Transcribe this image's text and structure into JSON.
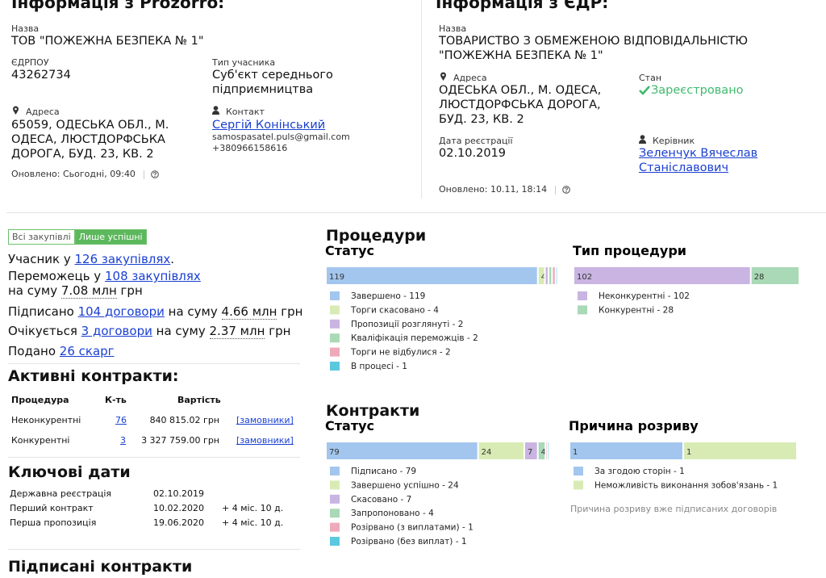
{
  "prozorro": {
    "title": "Інформація з Prozorro:",
    "name_label": "Назва",
    "name": "ТОВ \"ПОЖЕЖНА БЕЗПЕКА № 1\"",
    "edrpou_label": "ЄДРПОУ",
    "edrpou": "43262734",
    "type_label": "Тип учасника",
    "type": "Суб'єкт середнього підприємництва",
    "address_label": "Адреса",
    "address": "65059, ОДЕСЬКА ОБЛ., М. ОДЕСА, ЛЮСТДОРФСЬКА ДОРОГА, БУД. 23, КВ. 2",
    "contact_label": "Контакт",
    "contact_name": "Сергій Конінський",
    "contact_email": "samospasatel.puls@gmail.com",
    "contact_phone": "+380966158616",
    "updated": "Оновлено: Сьогодні, 09:40"
  },
  "edr": {
    "title": "Інформація з ЄДР:",
    "name_label": "Назва",
    "name": "ТОВАРИСТВО З ОБМЕЖЕНОЮ ВІДПОВІДАЛЬНІСТЮ \"ПОЖЕЖНА БЕЗПЕКА № 1\"",
    "address_label": "Адреса",
    "address": "ОДЕСЬКА ОБЛ., М. ОДЕСА, ЛЮСТДОРФСЬКА ДОРОГА, БУД. 23, КВ. 2",
    "state_label": "Стан",
    "state": "Зареєстровано",
    "reg_date_label": "Дата реєстрації",
    "reg_date": "02.10.2019",
    "head_label": "Керівник",
    "head": "Зеленчук Вячеслав Станіславович",
    "updated": "Оновлено: 10.11, 18:14"
  },
  "filters": [
    "Всі закупівлі",
    "Лише успішні"
  ],
  "summary": [
    [
      "Учасник у",
      "126 закупівлях",
      "."
    ],
    [
      "Переможець у",
      "108 закупівлях",
      "на суму",
      "7.08 млн",
      "грн"
    ],
    [
      "Підписано",
      "104 договори",
      "на суму",
      "4.66 млн",
      "грн"
    ],
    [
      "Очікується",
      "3 договори",
      "на суму",
      "2.37 млн",
      "грн"
    ],
    [
      "Подано",
      "26 скарг"
    ]
  ],
  "active_contracts": {
    "title": "Активні контракти:",
    "headers": [
      "Процедура",
      "К-ть",
      "Вартість"
    ],
    "rows": [
      [
        "Неконкурентні",
        "76",
        "840 815.02 грн",
        "[замовники]"
      ],
      [
        "Конкурентні",
        "3",
        "3 327 759.00 грн",
        "[замовники]"
      ]
    ]
  },
  "key_dates": {
    "title": "Ключові дати",
    "rows": [
      [
        "Державна реєстрація",
        "02.10.2019"
      ],
      [
        "Перший контракт",
        "10.02.2020",
        "+ 4 міс. 10 д."
      ],
      [
        "Перша пропозиція",
        "19.06.2020",
        "+ 4 міс. 10 д."
      ]
    ]
  },
  "signed_contracts": {
    "title": "Підписані контракти"
  },
  "procedures": {
    "title": "Процедури",
    "status": {
      "type": "bar",
      "title": "Статус",
      "categories": [
        "Завершено - 119",
        "Торги скасовано - 4",
        "Пропозиції розглянуті - 2",
        "Кваліфікація переможців - 2",
        "Торги не відбулися - 2",
        "В процесі - 1"
      ],
      "values": [
        119,
        4,
        2,
        2,
        2,
        1
      ],
      "colors": [
        "#a3c6ee",
        "#d9ebb5",
        "#c9b4e2",
        "#a9d9b6",
        "#eeaabb",
        "#5ac8de"
      ]
    },
    "kind": {
      "type": "bar",
      "title": "Тип процедури",
      "categories": [
        "Неконкурентні - 102",
        "Конкурентні - 28"
      ],
      "values": [
        102,
        28
      ],
      "colors": [
        "#c9b4e2",
        "#a9d9b6"
      ]
    }
  },
  "contracts": {
    "title": "Контракти",
    "status": {
      "type": "bar",
      "title": "Статус",
      "categories": [
        "Підписано - 79",
        "Завершено успішно - 24",
        "Скасовано - 7",
        "Запропоновано - 4",
        "Розірвано (з виплатами) - 1",
        "Розірвано (без виплат) - 1"
      ],
      "values": [
        79,
        24,
        7,
        4,
        1,
        1
      ],
      "colors": [
        "#a3c6ee",
        "#d9ebb5",
        "#c9b4e2",
        "#a9d9b6",
        "#eeaabb",
        "#5ac8de"
      ]
    },
    "termination": {
      "type": "bar",
      "title": "Причина розриву",
      "categories": [
        "За згодою сторін - 1",
        "Неможливість виконання зобов'язань - 1"
      ],
      "values": [
        1,
        1
      ],
      "colors": [
        "#a3c6ee",
        "#d9ebb5"
      ],
      "note": "Причина розриву вже підписаних договорів"
    }
  }
}
